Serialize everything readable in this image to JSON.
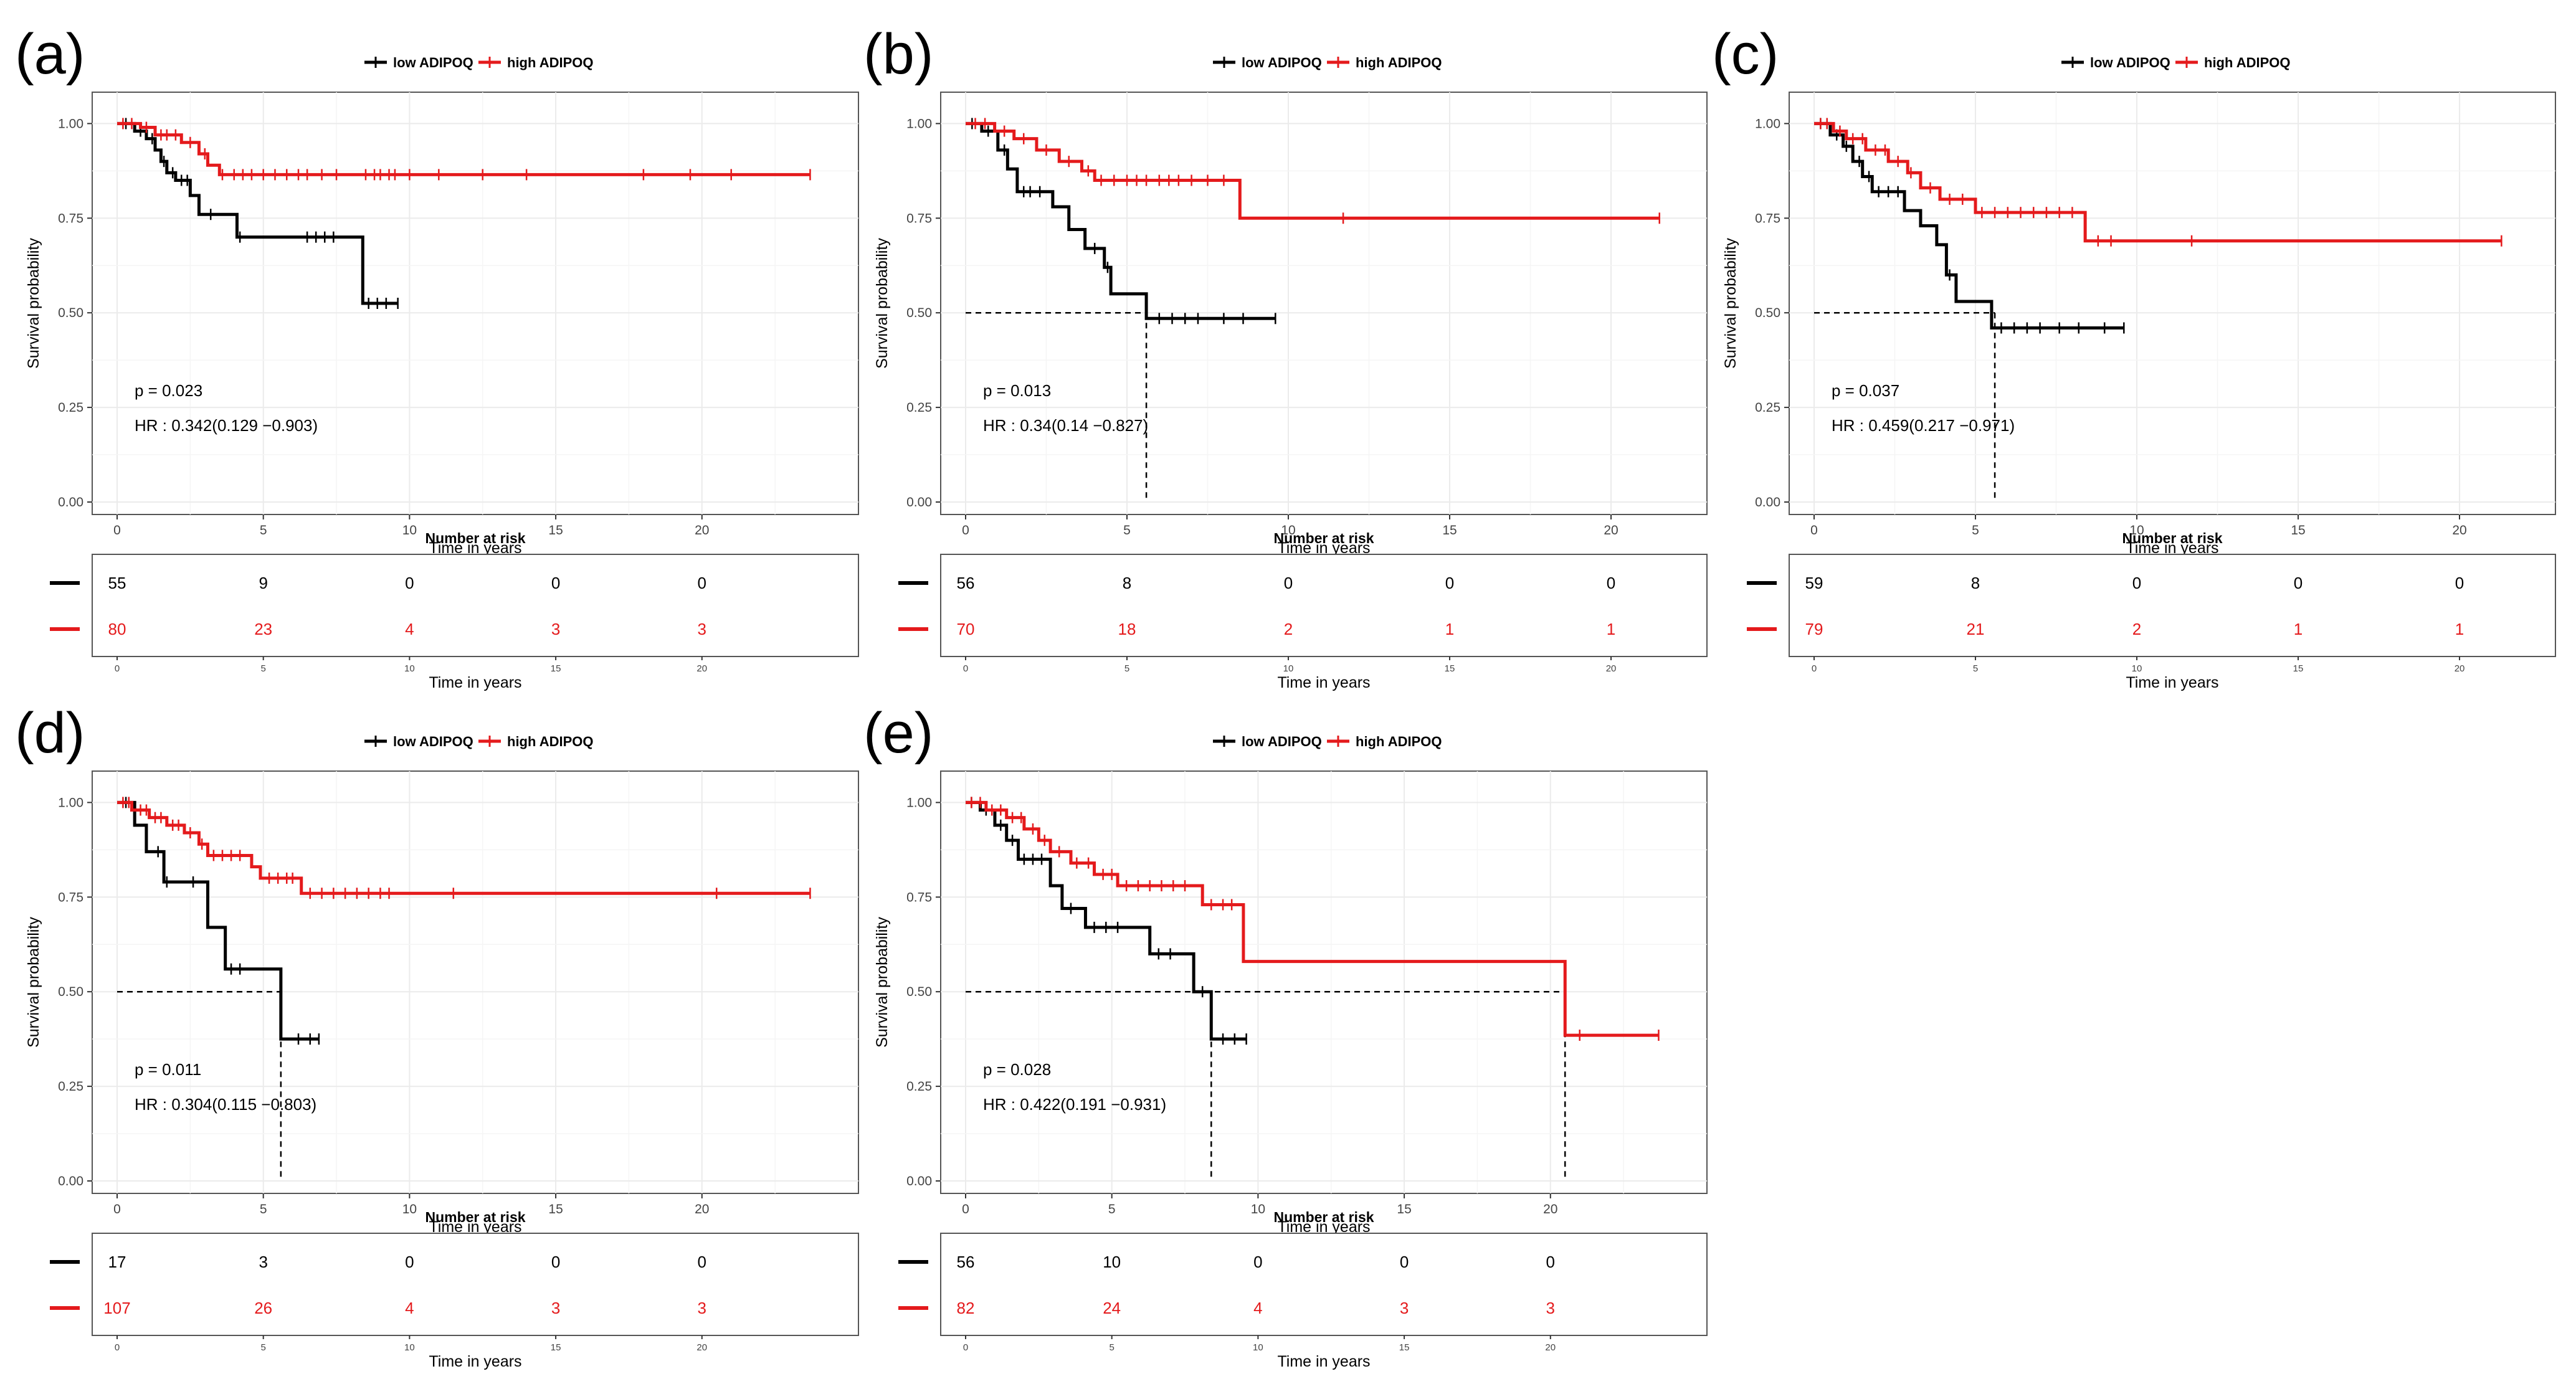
{
  "colors": {
    "low": "#000000",
    "high": "#e41a1c",
    "grid": "#ebebeb",
    "frame": "#555555"
  },
  "chart_data": [
    {
      "type": "line",
      "panel": "(a)",
      "xlabel": "Time in years",
      "ylabel": "Survival probability",
      "xlim": [
        0,
        24.5
      ],
      "ylim": [
        0,
        1.05
      ],
      "xticks": [
        0,
        5,
        10,
        15,
        20
      ],
      "yticks": [
        "0.00",
        "0.25",
        "0.50",
        "0.75",
        "1.00"
      ],
      "legend": [
        "low ADIPOQ",
        "high ADIPOQ"
      ],
      "p_value": "p = 0.023",
      "hr": "HR : 0.342(0.129 −0.903)",
      "median_lines": [],
      "series": [
        {
          "name": "low ADIPOQ",
          "steps": [
            [
              0,
              1
            ],
            [
              0.6,
              0.98
            ],
            [
              1.0,
              0.96
            ],
            [
              1.3,
              0.93
            ],
            [
              1.5,
              0.9
            ],
            [
              1.7,
              0.87
            ],
            [
              2.0,
              0.85
            ],
            [
              2.5,
              0.81
            ],
            [
              2.8,
              0.76
            ],
            [
              4.1,
              0.7
            ],
            [
              8.4,
              0.525
            ],
            [
              9.6,
              0.525
            ]
          ],
          "censors": [
            0.3,
            0.8,
            1.2,
            1.6,
            1.9,
            2.2,
            2.4,
            3.2,
            4.2,
            6.5,
            6.8,
            7.1,
            7.4,
            8.6,
            8.9,
            9.2,
            9.6
          ]
        },
        {
          "name": "high ADIPOQ",
          "steps": [
            [
              0,
              1
            ],
            [
              0.8,
              0.99
            ],
            [
              1.3,
              0.97
            ],
            [
              2.2,
              0.95
            ],
            [
              2.8,
              0.92
            ],
            [
              3.1,
              0.89
            ],
            [
              3.5,
              0.865
            ],
            [
              23.7,
              0.865
            ]
          ],
          "censors": [
            0.2,
            0.5,
            1.0,
            1.5,
            1.7,
            2.0,
            2.5,
            3.0,
            3.6,
            4.0,
            4.3,
            4.6,
            5.0,
            5.4,
            5.8,
            6.2,
            6.5,
            7.0,
            7.5,
            8.5,
            8.8,
            9.0,
            9.3,
            9.5,
            10,
            11,
            12.5,
            14,
            18,
            19.6,
            21,
            23.7
          ]
        }
      ],
      "risk_table": {
        "title": "Number at risk",
        "xlabel": "Time in years",
        "times": [
          0,
          5,
          10,
          15,
          20
        ],
        "low": [
          55,
          9,
          0,
          0,
          0
        ],
        "high": [
          80,
          23,
          4,
          3,
          3
        ]
      }
    },
    {
      "type": "line",
      "panel": "(b)",
      "xlabel": "Time in years",
      "ylabel": "Survival probability",
      "xlim": [
        0,
        22.2
      ],
      "ylim": [
        0,
        1.05
      ],
      "xticks": [
        0,
        5,
        10,
        15,
        20
      ],
      "yticks": [
        "0.00",
        "0.25",
        "0.50",
        "0.75",
        "1.00"
      ],
      "legend": [
        "low ADIPOQ",
        "high ADIPOQ"
      ],
      "p_value": "p = 0.013",
      "hr": "HR : 0.34(0.14 −0.827)",
      "median_lines": [
        5.6
      ],
      "series": [
        {
          "name": "low ADIPOQ",
          "steps": [
            [
              0,
              1
            ],
            [
              0.5,
              0.98
            ],
            [
              1.0,
              0.93
            ],
            [
              1.3,
              0.88
            ],
            [
              1.6,
              0.82
            ],
            [
              2.7,
              0.78
            ],
            [
              3.2,
              0.72
            ],
            [
              3.7,
              0.67
            ],
            [
              4.3,
              0.62
            ],
            [
              4.5,
              0.55
            ],
            [
              5.6,
              0.485
            ],
            [
              9.6,
              0.485
            ]
          ],
          "censors": [
            0.2,
            0.7,
            1.2,
            1.8,
            2.0,
            2.3,
            4.0,
            4.4,
            6.0,
            6.4,
            6.8,
            7.2,
            8.0,
            8.6,
            9.6
          ]
        },
        {
          "name": "high ADIPOQ",
          "steps": [
            [
              0,
              1
            ],
            [
              0.9,
              0.98
            ],
            [
              1.5,
              0.96
            ],
            [
              2.2,
              0.93
            ],
            [
              2.9,
              0.9
            ],
            [
              3.6,
              0.875
            ],
            [
              4.0,
              0.85
            ],
            [
              8.5,
              0.75
            ],
            [
              21.5,
              0.75
            ]
          ],
          "censors": [
            0.3,
            0.6,
            1.2,
            1.8,
            2.5,
            3.2,
            3.8,
            4.2,
            4.6,
            5.0,
            5.3,
            5.6,
            6.0,
            6.3,
            6.6,
            7.0,
            7.5,
            8.0,
            11.7,
            21.5
          ]
        }
      ],
      "risk_table": {
        "title": "Number at risk",
        "xlabel": "Time in years",
        "times": [
          0,
          5,
          10,
          15,
          20
        ],
        "low": [
          56,
          8,
          0,
          0,
          0
        ],
        "high": [
          70,
          18,
          2,
          1,
          1
        ]
      }
    },
    {
      "type": "line",
      "panel": "(c)",
      "xlabel": "Time in years",
      "ylabel": "Survival probability",
      "xlim": [
        0,
        22.2
      ],
      "ylim": [
        0,
        1.05
      ],
      "xticks": [
        0,
        5,
        10,
        15,
        20
      ],
      "yticks": [
        "0.00",
        "0.25",
        "0.50",
        "0.75",
        "1.00"
      ],
      "legend": [
        "low ADIPOQ",
        "high ADIPOQ"
      ],
      "p_value": "p = 0.037",
      "hr": "HR : 0.459(0.217 −0.971)",
      "median_lines": [
        5.6
      ],
      "series": [
        {
          "name": "low ADIPOQ",
          "steps": [
            [
              0,
              1
            ],
            [
              0.5,
              0.97
            ],
            [
              0.9,
              0.94
            ],
            [
              1.2,
              0.9
            ],
            [
              1.5,
              0.86
            ],
            [
              1.8,
              0.82
            ],
            [
              2.8,
              0.77
            ],
            [
              3.3,
              0.73
            ],
            [
              3.8,
              0.68
            ],
            [
              4.1,
              0.6
            ],
            [
              4.4,
              0.53
            ],
            [
              5.5,
              0.46
            ],
            [
              9.6,
              0.46
            ]
          ],
          "censors": [
            0.2,
            0.7,
            1.0,
            1.4,
            1.7,
            2.0,
            2.3,
            2.6,
            4.2,
            5.8,
            6.2,
            6.6,
            7.0,
            7.6,
            8.2,
            9.0,
            9.6
          ]
        },
        {
          "name": "high ADIPOQ",
          "steps": [
            [
              0,
              1
            ],
            [
              0.6,
              0.98
            ],
            [
              1.0,
              0.96
            ],
            [
              1.6,
              0.93
            ],
            [
              2.3,
              0.9
            ],
            [
              2.9,
              0.87
            ],
            [
              3.3,
              0.83
            ],
            [
              3.9,
              0.8
            ],
            [
              5.0,
              0.765
            ],
            [
              8.4,
              0.69
            ],
            [
              21.3,
              0.69
            ]
          ],
          "censors": [
            0.2,
            0.4,
            0.8,
            1.2,
            1.5,
            1.9,
            2.2,
            2.6,
            3.0,
            3.6,
            4.2,
            4.6,
            5.2,
            5.6,
            6.0,
            6.4,
            6.8,
            7.2,
            7.6,
            8.0,
            8.8,
            9.2,
            11.7,
            21.3
          ]
        }
      ],
      "risk_table": {
        "title": "Number at risk",
        "xlabel": "Time in years",
        "times": [
          0,
          5,
          10,
          15,
          20
        ],
        "low": [
          59,
          8,
          0,
          0,
          0
        ],
        "high": [
          79,
          21,
          2,
          1,
          1
        ]
      }
    },
    {
      "type": "line",
      "panel": "(d)",
      "xlabel": "Time in years",
      "ylabel": "Survival probability",
      "xlim": [
        0,
        24.5
      ],
      "ylim": [
        0,
        1.05
      ],
      "xticks": [
        0,
        5,
        10,
        15,
        20
      ],
      "yticks": [
        "0.00",
        "0.25",
        "0.50",
        "0.75",
        "1.00"
      ],
      "legend": [
        "low ADIPOQ",
        "high ADIPOQ"
      ],
      "p_value": "p = 0.011",
      "hr": "HR : 0.304(0.115 −0.803)",
      "median_lines": [
        5.6
      ],
      "series": [
        {
          "name": "low ADIPOQ",
          "steps": [
            [
              0,
              1
            ],
            [
              0.6,
              0.94
            ],
            [
              1.0,
              0.87
            ],
            [
              1.6,
              0.79
            ],
            [
              3.1,
              0.67
            ],
            [
              3.7,
              0.56
            ],
            [
              5.6,
              0.375
            ],
            [
              6.9,
              0.375
            ]
          ],
          "censors": [
            0.3,
            1.4,
            1.7,
            2.6,
            3.9,
            4.2,
            6.2,
            6.6,
            6.9
          ]
        },
        {
          "name": "high ADIPOQ",
          "steps": [
            [
              0,
              1
            ],
            [
              0.5,
              0.98
            ],
            [
              1.1,
              0.96
            ],
            [
              1.7,
              0.94
            ],
            [
              2.3,
              0.92
            ],
            [
              2.8,
              0.89
            ],
            [
              3.1,
              0.86
            ],
            [
              4.6,
              0.83
            ],
            [
              4.9,
              0.8
            ],
            [
              6.3,
              0.76
            ],
            [
              23.7,
              0.76
            ]
          ],
          "censors": [
            0.2,
            0.4,
            0.8,
            1.0,
            1.3,
            1.5,
            1.9,
            2.1,
            2.5,
            2.9,
            3.3,
            3.6,
            3.9,
            4.2,
            5.2,
            5.5,
            5.8,
            6.0,
            6.6,
            7.0,
            7.4,
            7.8,
            8.2,
            8.6,
            9.0,
            9.3,
            11.5,
            20.5,
            23.7
          ]
        }
      ],
      "risk_table": {
        "title": "Number at risk",
        "xlabel": "Time in years",
        "times": [
          0,
          5,
          10,
          15,
          20
        ],
        "low": [
          17,
          3,
          0,
          0,
          0
        ],
        "high": [
          107,
          26,
          4,
          3,
          3
        ]
      }
    },
    {
      "type": "line",
      "panel": "(e)",
      "xlabel": "Time in years",
      "ylabel": "Survival probability",
      "xlim": [
        0,
        24.5
      ],
      "ylim": [
        0,
        1.05
      ],
      "xticks": [
        0,
        5,
        10,
        15,
        20
      ],
      "yticks": [
        "0.00",
        "0.25",
        "0.50",
        "0.75",
        "1.00"
      ],
      "legend": [
        "low ADIPOQ",
        "high ADIPOQ"
      ],
      "p_value": "p = 0.028",
      "hr": "HR : 0.422(0.191 −0.931)",
      "median_lines": [
        8.4,
        20.5
      ],
      "series": [
        {
          "name": "low ADIPOQ",
          "steps": [
            [
              0,
              1
            ],
            [
              0.5,
              0.98
            ],
            [
              1.0,
              0.94
            ],
            [
              1.4,
              0.9
            ],
            [
              1.8,
              0.85
            ],
            [
              2.9,
              0.78
            ],
            [
              3.3,
              0.72
            ],
            [
              4.1,
              0.67
            ],
            [
              6.3,
              0.6
            ],
            [
              7.8,
              0.5
            ],
            [
              8.4,
              0.375
            ],
            [
              9.6,
              0.375
            ]
          ],
          "censors": [
            0.2,
            0.7,
            1.2,
            1.6,
            2.0,
            2.3,
            2.6,
            3.6,
            4.4,
            4.8,
            5.2,
            6.6,
            7.0,
            8.1,
            8.8,
            9.2,
            9.6
          ]
        },
        {
          "name": "high ADIPOQ",
          "steps": [
            [
              0,
              1
            ],
            [
              0.7,
              0.98
            ],
            [
              1.4,
              0.96
            ],
            [
              2.0,
              0.93
            ],
            [
              2.5,
              0.9
            ],
            [
              2.9,
              0.87
            ],
            [
              3.6,
              0.84
            ],
            [
              4.4,
              0.81
            ],
            [
              5.2,
              0.78
            ],
            [
              8.1,
              0.73
            ],
            [
              9.5,
              0.58
            ],
            [
              20.5,
              0.385
            ],
            [
              23.7,
              0.385
            ]
          ],
          "censors": [
            0.2,
            0.5,
            0.9,
            1.2,
            1.6,
            1.9,
            2.3,
            2.7,
            3.2,
            3.8,
            4.2,
            4.7,
            5.0,
            5.5,
            5.9,
            6.3,
            6.7,
            7.1,
            7.5,
            8.4,
            8.8,
            9.1,
            21.0,
            23.7
          ]
        }
      ],
      "risk_table": {
        "title": "Number at risk",
        "xlabel": "Time in years",
        "times": [
          0,
          5,
          10,
          15,
          20
        ],
        "low": [
          56,
          10,
          0,
          0,
          0
        ],
        "high": [
          82,
          24,
          4,
          3,
          3
        ]
      }
    }
  ]
}
